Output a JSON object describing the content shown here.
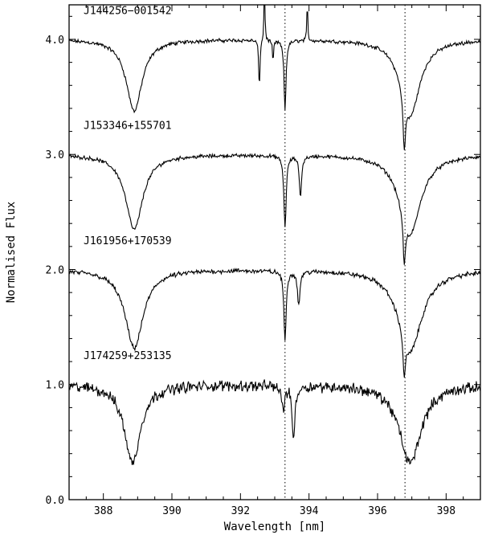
{
  "chart_data": {
    "type": "line",
    "title": "",
    "xlabel": "Wavelength [nm]",
    "ylabel": "Normalised Flux",
    "xlim": [
      387,
      399
    ],
    "ylim": [
      0.0,
      4.3
    ],
    "x_ticks": [
      388,
      390,
      392,
      394,
      396,
      398
    ],
    "x_tick_labels": [
      "388",
      "390",
      "392",
      "394",
      "396",
      "398"
    ],
    "y_ticks": [
      0.0,
      1.0,
      2.0,
      3.0,
      4.0
    ],
    "y_tick_labels": [
      "0.0",
      "1.0",
      "2.0",
      "3.0",
      "4.0"
    ],
    "reference_lines": [
      393.3,
      396.8
    ],
    "grid": false,
    "legend": "none",
    "series": [
      {
        "name": "J144256−001542",
        "offset": 3.0,
        "noise": 0.02,
        "features": [
          {
            "center": 388.9,
            "depth": 0.62,
            "width": 0.28
          },
          {
            "center": 393.3,
            "depth": 0.6,
            "width": 0.035
          },
          {
            "center": 392.55,
            "depth": 0.45,
            "width": 0.02
          },
          {
            "center": 392.95,
            "depth": 0.18,
            "width": 0.02
          },
          {
            "center": 396.95,
            "depth": 0.65,
            "width": 0.35
          },
          {
            "center": 396.78,
            "depth": 0.45,
            "width": 0.04
          }
        ],
        "emission": [
          {
            "center": 392.7,
            "height": 0.55,
            "width": 0.015
          },
          {
            "center": 393.95,
            "height": 0.35,
            "width": 0.015
          }
        ]
      },
      {
        "name": "J153346+155701",
        "offset": 2.0,
        "noise": 0.02,
        "features": [
          {
            "center": 388.9,
            "depth": 0.65,
            "width": 0.3
          },
          {
            "center": 393.3,
            "depth": 0.62,
            "width": 0.04
          },
          {
            "center": 393.75,
            "depth": 0.35,
            "width": 0.04
          },
          {
            "center": 396.95,
            "depth": 0.68,
            "width": 0.38
          },
          {
            "center": 396.78,
            "depth": 0.4,
            "width": 0.04
          }
        ],
        "emission": []
      },
      {
        "name": "J161956+170539",
        "offset": 1.0,
        "noise": 0.025,
        "features": [
          {
            "center": 388.9,
            "depth": 0.68,
            "width": 0.32
          },
          {
            "center": 393.3,
            "depth": 0.6,
            "width": 0.04
          },
          {
            "center": 393.7,
            "depth": 0.3,
            "width": 0.04
          },
          {
            "center": 396.95,
            "depth": 0.7,
            "width": 0.42
          },
          {
            "center": 396.78,
            "depth": 0.35,
            "width": 0.04
          }
        ],
        "emission": []
      },
      {
        "name": "J174259+253135",
        "offset": 0.0,
        "noise": 0.06,
        "features": [
          {
            "center": 388.85,
            "depth": 0.68,
            "width": 0.28
          },
          {
            "center": 393.55,
            "depth": 0.45,
            "width": 0.05
          },
          {
            "center": 393.25,
            "depth": 0.2,
            "width": 0.05
          },
          {
            "center": 396.95,
            "depth": 0.68,
            "width": 0.38
          }
        ],
        "emission": []
      }
    ]
  }
}
